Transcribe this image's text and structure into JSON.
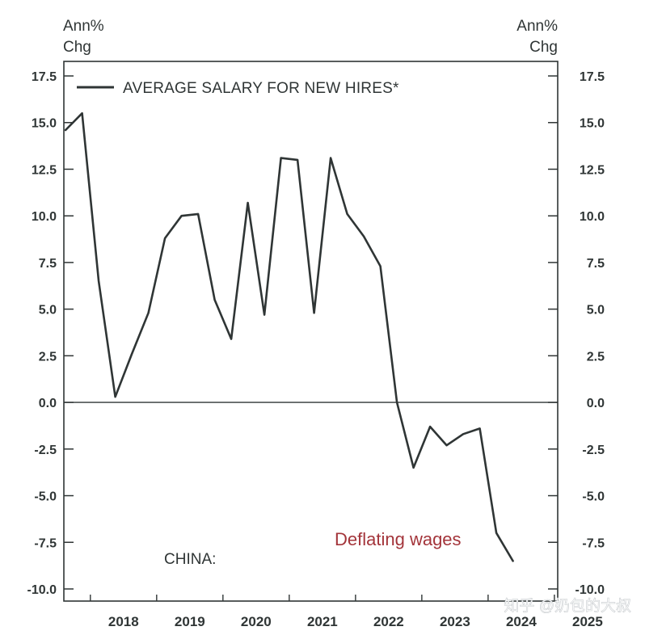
{
  "chart_data": {
    "type": "line",
    "left_axis_label": [
      "Ann%",
      "Chg"
    ],
    "right_axis_label": [
      "Ann%",
      "Chg"
    ],
    "ylim": [
      -10,
      17.5
    ],
    "y_ticks": [
      "17.5",
      "15.0",
      "12.5",
      "10.0",
      "7.5",
      "5.0",
      "2.5",
      "0.0",
      "-2.5",
      "-5.0",
      "-7.5",
      "-10.0"
    ],
    "y_tick_values": [
      17.5,
      15,
      12.5,
      10,
      7.5,
      5,
      2.5,
      0,
      -2.5,
      -5,
      -7.5,
      -10
    ],
    "x_ticks": [
      "2018",
      "2019",
      "2020",
      "2021",
      "2022",
      "2023",
      "2024",
      "2025"
    ],
    "xlim": [
      2017.6,
      2025.05
    ],
    "zero_line": true,
    "legend_position": "top-left",
    "series": [
      {
        "name": "AVERAGE SALARY FOR NEW HIRES*",
        "color": "#2f3535",
        "x": [
          2017.625,
          2017.875,
          2018.125,
          2018.375,
          2018.625,
          2018.875,
          2019.125,
          2019.375,
          2019.625,
          2019.875,
          2020.125,
          2020.375,
          2020.625,
          2020.875,
          2021.125,
          2021.375,
          2021.625,
          2021.875,
          2022.125,
          2022.375,
          2022.625,
          2022.875,
          2023.125,
          2023.375,
          2023.625,
          2023.875,
          2024.125,
          2024.375
        ],
        "values": [
          14.6,
          15.5,
          6.5,
          0.3,
          2.6,
          4.8,
          8.8,
          10.0,
          10.1,
          5.5,
          3.4,
          10.7,
          4.7,
          13.1,
          13.0,
          4.8,
          13.1,
          10.1,
          8.9,
          7.3,
          0.0,
          -3.5,
          -1.3,
          -2.3,
          -1.7,
          -1.4,
          -7.0,
          -8.5
        ]
      }
    ],
    "annotations": {
      "region": "CHINA:",
      "title": "Deflating wages"
    }
  },
  "watermark": "知乎 @奶包的大叔"
}
